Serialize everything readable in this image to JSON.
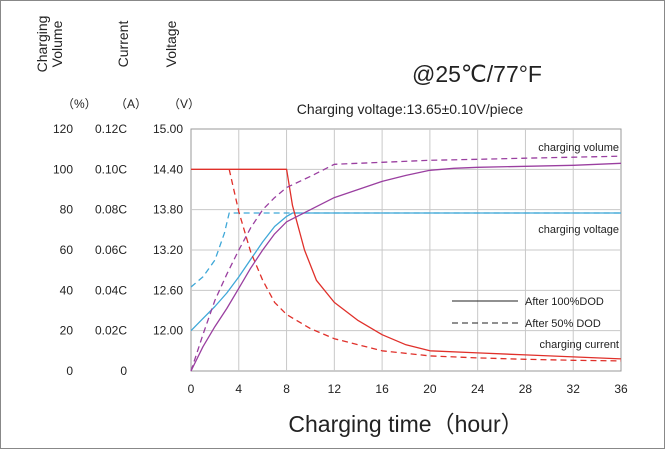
{
  "chart_data": {
    "type": "line",
    "title": "@25℃/77°F",
    "subtitle": "Charging voltage:13.65±0.10V/piece",
    "xlabel": "Charging time（hour）",
    "x_ticks": [
      "0",
      "4",
      "8",
      "12",
      "16",
      "20",
      "24",
      "28",
      "32",
      "36"
    ],
    "xlim": [
      0,
      36
    ],
    "grid": true,
    "axes": [
      {
        "name": "volume",
        "label": [
          "Charging",
          "Volume"
        ],
        "unit": "（%）",
        "ticks": [
          "0",
          "20",
          "40",
          "60",
          "80",
          "100",
          "120"
        ],
        "ylim": [
          0,
          120
        ]
      },
      {
        "name": "current",
        "label": [
          "Current"
        ],
        "unit": "（A）",
        "ticks": [
          "0",
          "0.02C",
          "0.04C",
          "0.06C",
          "0.08C",
          "0.10C",
          "0.12C"
        ],
        "ylim": [
          0,
          0.12
        ]
      },
      {
        "name": "voltage",
        "label": [
          "Voltage"
        ],
        "unit": "（V）",
        "ticks": [
          "",
          "12.00",
          "12.60",
          "13.20",
          "13.80",
          "14.40",
          "15.00"
        ],
        "ylim": [
          11.4,
          15.0
        ]
      }
    ],
    "annotations": [
      "charging volume",
      "charging voltage",
      "charging current"
    ],
    "legend": {
      "placement": "bottom-right",
      "entries": [
        {
          "label": "After 100%DOD",
          "dash": "solid"
        },
        {
          "label": "After  50% DOD",
          "dash": "dashed"
        }
      ]
    },
    "series": [
      {
        "dod": "100%",
        "kind": "voltage",
        "axis": "voltage",
        "color": "#3fa8d8",
        "dash": "solid",
        "points": [
          [
            0,
            12.0
          ],
          [
            1,
            12.18
          ],
          [
            2,
            12.36
          ],
          [
            3,
            12.56
          ],
          [
            4,
            12.8
          ],
          [
            5,
            13.06
          ],
          [
            6,
            13.32
          ],
          [
            7,
            13.55
          ],
          [
            8,
            13.7
          ],
          [
            8.5,
            13.75
          ],
          [
            36,
            13.75
          ]
        ]
      },
      {
        "dod": "50%",
        "kind": "voltage",
        "axis": "voltage",
        "color": "#3fa8d8",
        "dash": "dashed",
        "points": [
          [
            0,
            12.65
          ],
          [
            1,
            12.8
          ],
          [
            2,
            13.05
          ],
          [
            2.8,
            13.45
          ],
          [
            3.2,
            13.75
          ],
          [
            36,
            13.75
          ]
        ]
      },
      {
        "dod": "100%",
        "kind": "current",
        "axis": "current",
        "color": "#e0302a",
        "dash": "solid",
        "points": [
          [
            0,
            0.1
          ],
          [
            8,
            0.1
          ],
          [
            8.5,
            0.082
          ],
          [
            9.5,
            0.06
          ],
          [
            10.5,
            0.045
          ],
          [
            12,
            0.034
          ],
          [
            14,
            0.025
          ],
          [
            16,
            0.018
          ],
          [
            18,
            0.013
          ],
          [
            20,
            0.01
          ],
          [
            24,
            0.009
          ],
          [
            28,
            0.008
          ],
          [
            32,
            0.007
          ],
          [
            36,
            0.006
          ]
        ]
      },
      {
        "dod": "50%",
        "kind": "current",
        "axis": "current",
        "color": "#e0302a",
        "dash": "dashed",
        "points": [
          [
            3.2,
            0.1
          ],
          [
            4,
            0.079
          ],
          [
            5,
            0.059
          ],
          [
            6,
            0.045
          ],
          [
            7,
            0.034
          ],
          [
            8,
            0.028
          ],
          [
            10,
            0.021
          ],
          [
            12,
            0.016
          ],
          [
            16,
            0.01
          ],
          [
            20,
            0.0075
          ],
          [
            24,
            0.0065
          ],
          [
            28,
            0.0058
          ],
          [
            32,
            0.0053
          ],
          [
            36,
            0.005
          ]
        ]
      },
      {
        "dod": "100%",
        "kind": "volume",
        "axis": "volume",
        "color": "#9a3fa0",
        "dash": "solid",
        "points": [
          [
            0,
            0
          ],
          [
            1,
            12
          ],
          [
            2,
            22
          ],
          [
            3,
            31
          ],
          [
            4,
            41
          ],
          [
            5,
            51
          ],
          [
            6,
            60
          ],
          [
            7,
            68
          ],
          [
            8,
            74
          ],
          [
            10,
            80
          ],
          [
            12,
            86
          ],
          [
            14,
            90
          ],
          [
            16,
            94
          ],
          [
            18,
            97
          ],
          [
            20,
            99.5
          ],
          [
            22,
            100.5
          ],
          [
            24,
            101
          ],
          [
            28,
            101.5
          ],
          [
            32,
            102
          ],
          [
            36,
            103
          ]
        ]
      },
      {
        "dod": "50%",
        "kind": "volume",
        "axis": "volume",
        "color": "#9a3fa0",
        "dash": "dashed",
        "points": [
          [
            0,
            0
          ],
          [
            1,
            18
          ],
          [
            2,
            35
          ],
          [
            3,
            48
          ],
          [
            4,
            60
          ],
          [
            5,
            71
          ],
          [
            6,
            80
          ],
          [
            7,
            86
          ],
          [
            8,
            91
          ],
          [
            10,
            96.5
          ],
          [
            12,
            102.5
          ],
          [
            16,
            103.5
          ],
          [
            20,
            104.5
          ],
          [
            24,
            105
          ],
          [
            28,
            105.5
          ],
          [
            32,
            106
          ],
          [
            36,
            106.5
          ]
        ]
      }
    ]
  }
}
